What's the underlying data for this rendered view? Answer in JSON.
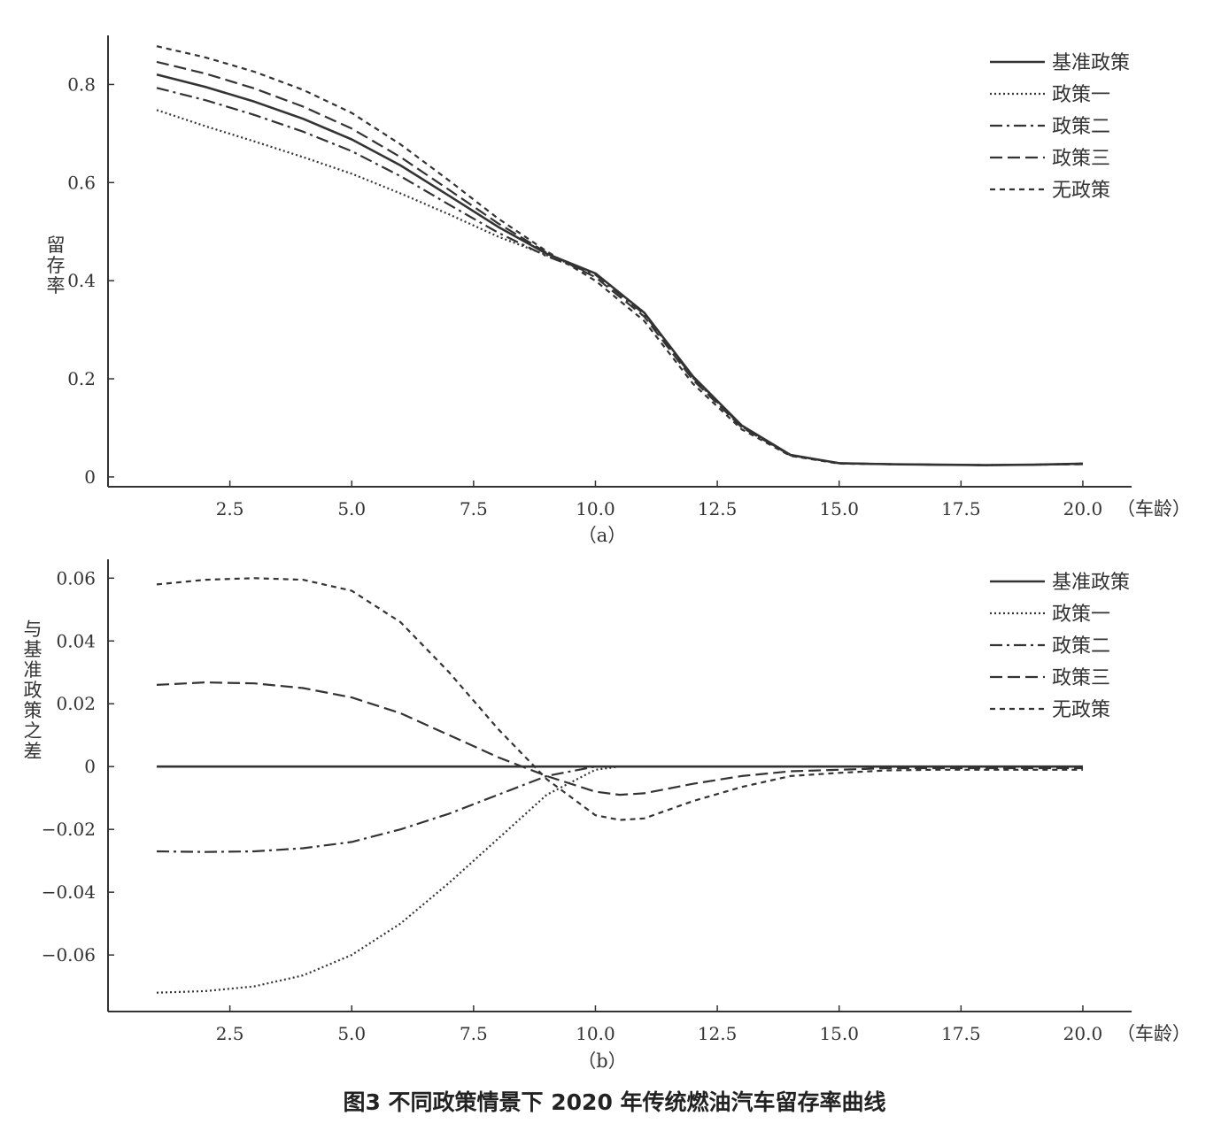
{
  "caption": "图3 不同政策情景下 2020 年传统燃油汽车留存率曲线",
  "styles": {
    "基准政策": {
      "dash": "",
      "width": 2.6
    },
    "政策一": {
      "dash": "2 3",
      "width": 2.2
    },
    "政策二": {
      "dash": "14 5 3 5",
      "width": 2.2
    },
    "政策三": {
      "dash": "14 6",
      "width": 2.2
    },
    "无政策": {
      "dash": "6 5",
      "width": 2.2
    }
  },
  "chart_data": [
    {
      "type": "line",
      "panel_label": "（a）",
      "xlabel": "（车龄）",
      "ylabel": "留存率",
      "xlim": [
        0.0,
        21.0
      ],
      "ylim": [
        -0.02,
        0.9
      ],
      "xticks": [
        2.5,
        5.0,
        7.5,
        10.0,
        12.5,
        15.0,
        17.5,
        20.0
      ],
      "xtick_labels": [
        "2.5",
        "5.0",
        "7.5",
        "10.0",
        "12.5",
        "15.0",
        "17.5",
        "20.0"
      ],
      "yticks": [
        0,
        0.2,
        0.4,
        0.6,
        0.8
      ],
      "ytick_labels": [
        "0",
        "0.2",
        "0.4",
        "0.6",
        "0.8"
      ],
      "legend": [
        "基准政策",
        "政策一",
        "政策二",
        "政策三",
        "无政策"
      ],
      "legend_position": "top-right",
      "x": [
        1,
        2,
        3,
        4,
        5,
        6,
        7,
        8,
        9,
        10,
        11,
        12,
        13,
        14,
        15,
        16,
        17,
        18,
        19,
        20
      ],
      "series": [
        {
          "name": "基准政策",
          "values": [
            0.82,
            0.795,
            0.765,
            0.73,
            0.688,
            0.635,
            0.573,
            0.51,
            0.455,
            0.415,
            0.335,
            0.205,
            0.105,
            0.045,
            0.028,
            0.026,
            0.025,
            0.024,
            0.025,
            0.027
          ]
        },
        {
          "name": "政策一",
          "values": [
            0.748,
            0.715,
            0.684,
            0.652,
            0.618,
            0.578,
            0.535,
            0.49,
            0.452,
            0.415,
            0.335,
            0.205,
            0.105,
            0.045,
            0.028,
            0.026,
            0.025,
            0.024,
            0.025,
            0.027
          ]
        },
        {
          "name": "政策二",
          "values": [
            0.793,
            0.768,
            0.738,
            0.704,
            0.664,
            0.613,
            0.555,
            0.498,
            0.45,
            0.412,
            0.332,
            0.202,
            0.103,
            0.044,
            0.028,
            0.026,
            0.025,
            0.024,
            0.025,
            0.027
          ]
        },
        {
          "name": "政策三",
          "values": [
            0.846,
            0.822,
            0.792,
            0.755,
            0.71,
            0.652,
            0.585,
            0.517,
            0.457,
            0.407,
            0.327,
            0.198,
            0.101,
            0.044,
            0.028,
            0.026,
            0.025,
            0.024,
            0.025,
            0.026
          ]
        },
        {
          "name": "无政策",
          "values": [
            0.878,
            0.855,
            0.826,
            0.789,
            0.742,
            0.678,
            0.604,
            0.527,
            0.46,
            0.4,
            0.318,
            0.19,
            0.097,
            0.043,
            0.027,
            0.026,
            0.025,
            0.024,
            0.025,
            0.026
          ]
        }
      ]
    },
    {
      "type": "line",
      "panel_label": "（b）",
      "xlabel": "（车龄）",
      "ylabel": "与基准政策之差",
      "xlim": [
        0.0,
        21.0
      ],
      "ylim": [
        -0.078,
        0.066
      ],
      "xticks": [
        2.5,
        5.0,
        7.5,
        10.0,
        12.5,
        15.0,
        17.5,
        20.0
      ],
      "xtick_labels": [
        "2.5",
        "5.0",
        "7.5",
        "10.0",
        "12.5",
        "15.0",
        "17.5",
        "20.0"
      ],
      "yticks": [
        -0.06,
        -0.04,
        -0.02,
        0,
        0.02,
        0.04,
        0.06
      ],
      "ytick_labels": [
        "−0.06",
        "−0.04",
        "−0.02",
        "0",
        "0.02",
        "0.04",
        "0.06"
      ],
      "legend": [
        "基准政策",
        "政策一",
        "政策二",
        "政策三",
        "无政策"
      ],
      "legend_position": "top-right",
      "x": [
        1,
        2,
        3,
        4,
        5,
        6,
        7,
        8,
        9,
        10,
        10.5,
        11,
        12,
        13,
        14,
        15,
        16,
        17,
        18,
        19,
        20
      ],
      "series": [
        {
          "name": "基准政策",
          "values": [
            0,
            0,
            0,
            0,
            0,
            0,
            0,
            0,
            0,
            0,
            0,
            0,
            0,
            0,
            0,
            0,
            0,
            0,
            0,
            0,
            0
          ]
        },
        {
          "name": "政策一",
          "values": [
            -0.072,
            -0.0715,
            -0.07,
            -0.0665,
            -0.06,
            -0.05,
            -0.037,
            -0.023,
            -0.009,
            -0.001,
            0,
            0,
            0,
            0,
            0,
            0,
            0,
            0,
            0,
            0,
            0
          ]
        },
        {
          "name": "政策二",
          "values": [
            -0.027,
            -0.0272,
            -0.027,
            -0.026,
            -0.024,
            -0.02,
            -0.015,
            -0.009,
            -0.003,
            0,
            0,
            0,
            0,
            0,
            0,
            0,
            0,
            0,
            0,
            0,
            0
          ]
        },
        {
          "name": "政策三",
          "values": [
            0.026,
            0.0268,
            0.0265,
            0.025,
            0.022,
            0.017,
            0.01,
            0.003,
            -0.003,
            -0.008,
            -0.009,
            -0.0085,
            -0.0055,
            -0.003,
            -0.0015,
            -0.001,
            -0.0005,
            -0.0005,
            -0.0005,
            -0.0005,
            -0.0005
          ]
        },
        {
          "name": "无政策",
          "values": [
            0.058,
            0.0595,
            0.06,
            0.0595,
            0.056,
            0.046,
            0.03,
            0.012,
            -0.004,
            -0.0155,
            -0.017,
            -0.0165,
            -0.011,
            -0.0065,
            -0.003,
            -0.002,
            -0.0012,
            -0.001,
            -0.001,
            -0.001,
            -0.001
          ]
        }
      ]
    }
  ]
}
